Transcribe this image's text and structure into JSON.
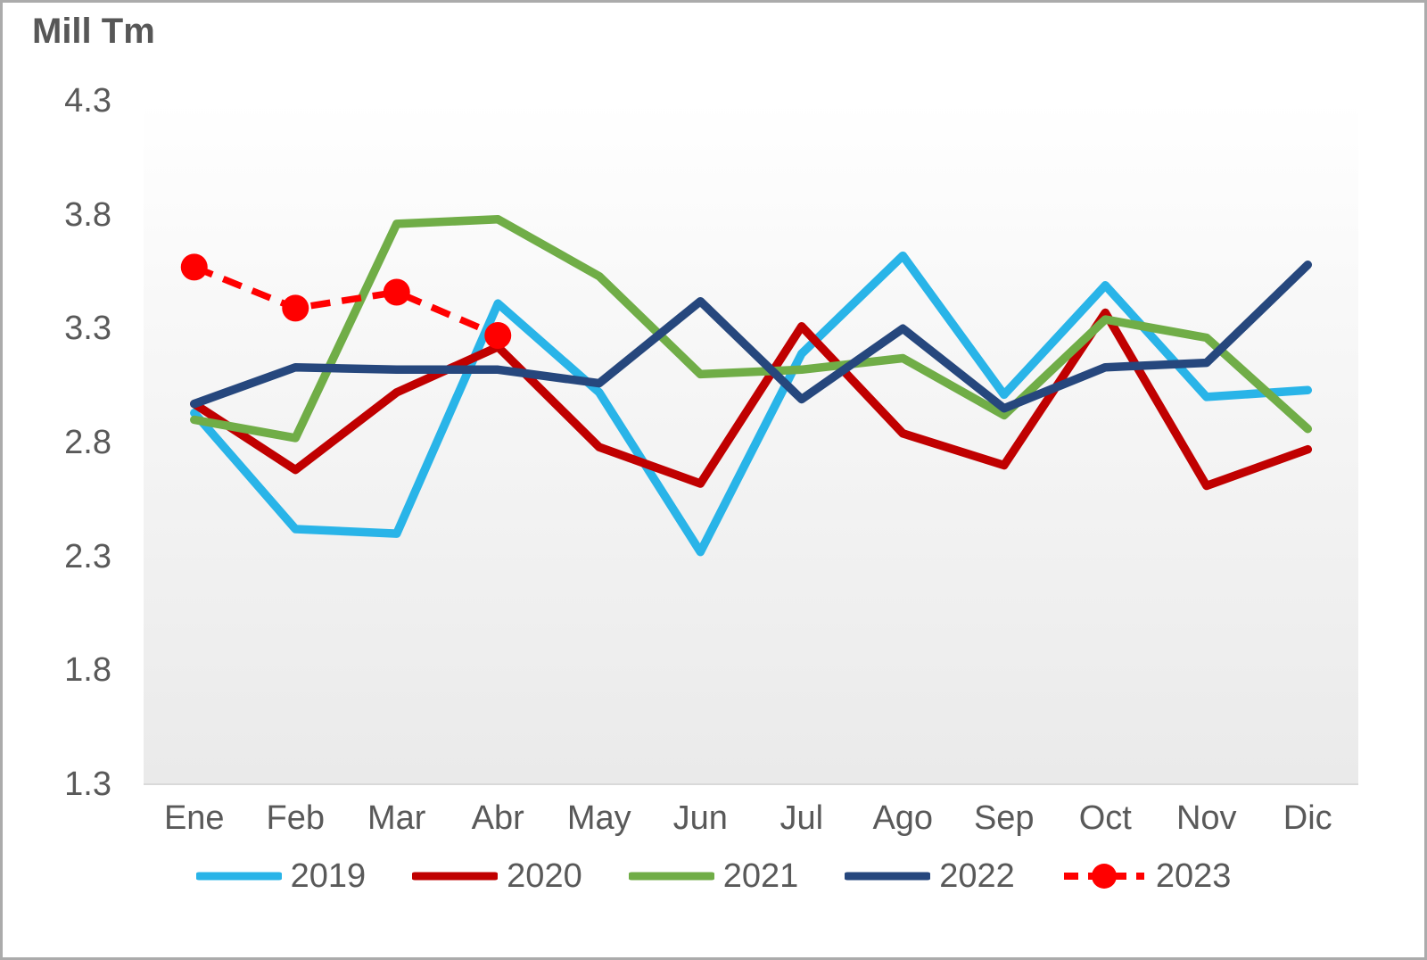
{
  "title": "Mill Tm",
  "chart_data": {
    "type": "line",
    "title": "Mill Tm",
    "ylabel": "Mill Tm",
    "categories": [
      "Ene",
      "Feb",
      "Mar",
      "Abr",
      "May",
      "Jun",
      "Jul",
      "Ago",
      "Sep",
      "Oct",
      "Nov",
      "Dic"
    ],
    "yticks": [
      "4.3",
      "3.8",
      "3.3",
      "2.8",
      "2.3",
      "1.8",
      "1.3"
    ],
    "ylim": [
      1.3,
      4.3
    ],
    "grid": false,
    "legend_position": "bottom",
    "plot_background": [
      "#ffffff",
      "#eaeaea"
    ],
    "axis_line_color": "#d9d9d9",
    "text_color": "#595959",
    "series": [
      {
        "name": "2019",
        "color": "#29b4e8",
        "dash": "solid",
        "marker": "none",
        "values": [
          2.93,
          2.42,
          2.4,
          3.41,
          3.02,
          2.32,
          3.19,
          3.62,
          3.01,
          3.49,
          3.0,
          3.03
        ]
      },
      {
        "name": "2020",
        "color": "#c00000",
        "dash": "solid",
        "marker": "none",
        "values": [
          2.97,
          2.68,
          3.02,
          3.22,
          2.78,
          2.62,
          3.31,
          2.84,
          2.7,
          3.37,
          2.61,
          2.77
        ]
      },
      {
        "name": "2021",
        "color": "#70ad47",
        "dash": "solid",
        "marker": "none",
        "values": [
          2.9,
          2.82,
          3.76,
          3.78,
          3.53,
          3.1,
          3.12,
          3.17,
          2.92,
          3.34,
          3.26,
          2.86
        ]
      },
      {
        "name": "2022",
        "color": "#26477d",
        "dash": "solid",
        "marker": "none",
        "values": [
          2.97,
          3.13,
          3.12,
          3.12,
          3.06,
          3.42,
          2.99,
          3.3,
          2.95,
          3.13,
          3.15,
          3.58
        ]
      },
      {
        "name": "2023",
        "color": "#ff0000",
        "dash": "dashed",
        "marker": "circle",
        "values": [
          3.57,
          3.39,
          3.46,
          3.27,
          null,
          null,
          null,
          null,
          null,
          null,
          null,
          null
        ]
      }
    ]
  }
}
